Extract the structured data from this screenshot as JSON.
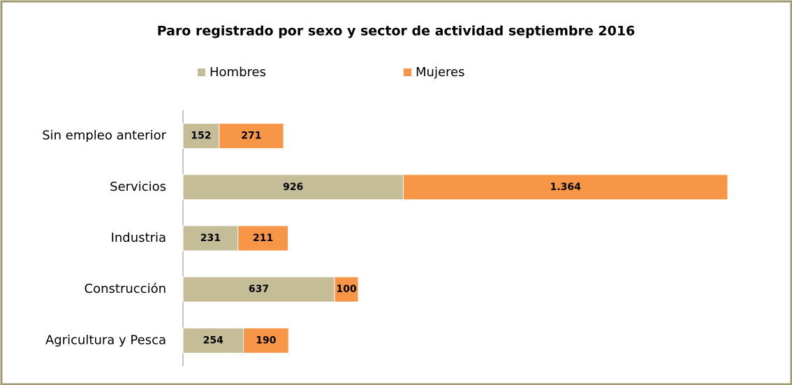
{
  "chart_data": {
    "type": "bar",
    "orientation": "horizontal",
    "stacked": true,
    "title": "Paro registrado por sexo y sector de actividad septiembre 2016",
    "categories": [
      "Sin empleo anterior",
      "Servicios",
      "Industria",
      "Construcción",
      "Agricultura y  Pesca"
    ],
    "series": [
      {
        "name": "Hombres",
        "color": "#c4bd97",
        "values": [
          152,
          926,
          231,
          637,
          254
        ]
      },
      {
        "name": "Mujeres",
        "color": "#f79646",
        "values": [
          271,
          1364,
          211,
          100,
          190
        ],
        "value_labels": [
          "271",
          "1.364",
          "211",
          "100",
          "190"
        ]
      }
    ],
    "legend": "top"
  }
}
